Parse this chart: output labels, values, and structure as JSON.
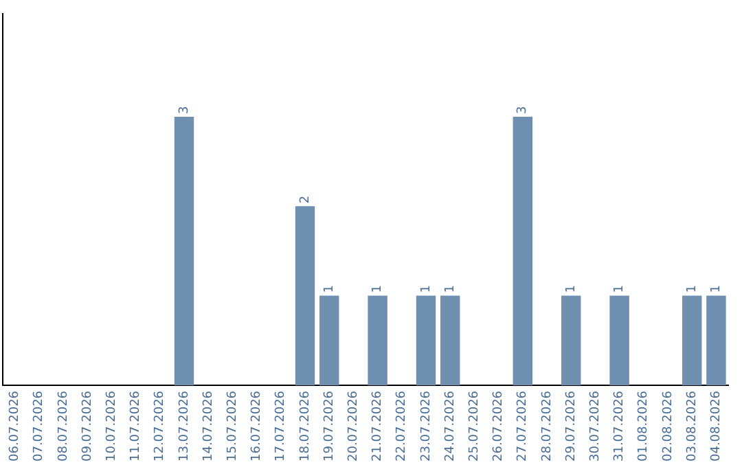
{
  "chart_data": {
    "type": "bar",
    "categories": [
      "06.07.2026",
      "07.07.2026",
      "08.07.2026",
      "09.07.2026",
      "10.07.2026",
      "11.07.2026",
      "12.07.2026",
      "13.07.2026",
      "14.07.2026",
      "15.07.2026",
      "16.07.2026",
      "17.07.2026",
      "18.07.2026",
      "19.07.2026",
      "20.07.2026",
      "21.07.2026",
      "22.07.2026",
      "23.07.2026",
      "24.07.2026",
      "25.07.2026",
      "26.07.2026",
      "27.07.2026",
      "28.07.2026",
      "29.07.2026",
      "30.07.2026",
      "31.07.2026",
      "01.08.2026",
      "02.08.2026",
      "03.08.2026",
      "04.08.2026"
    ],
    "values": [
      0,
      0,
      0,
      0,
      0,
      0,
      0,
      3,
      0,
      0,
      0,
      0,
      2,
      1,
      0,
      1,
      0,
      1,
      1,
      0,
      0,
      3,
      0,
      1,
      0,
      1,
      0,
      0,
      1,
      1
    ],
    "value_labels": [
      null,
      null,
      null,
      null,
      null,
      null,
      null,
      "3",
      null,
      null,
      null,
      null,
      "2",
      "1",
      null,
      "1",
      null,
      "1",
      "1",
      null,
      null,
      "3",
      null,
      "1",
      null,
      "1",
      null,
      null,
      "1",
      "1"
    ],
    "color": "#6e8fb0",
    "ylim": [
      0,
      4.15
    ],
    "grid": false,
    "legend": false
  }
}
